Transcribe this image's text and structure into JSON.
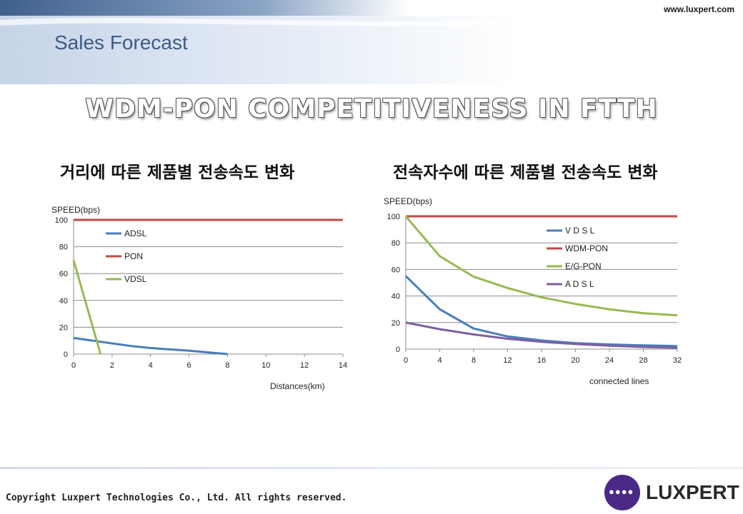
{
  "header": {
    "url": "www.luxpert.com",
    "section_title": "Sales Forecast"
  },
  "headline": "WDM-PON COMPETITIVENESS IN FTTH",
  "left_subtitle": "거리에 따른 제품별 전송속도 변화",
  "right_subtitle": "전속자수에 따른 제품별 전송속도 변화",
  "footer": {
    "copyright": "Copyright Luxpert Technologies Co., Ltd. All rights reserved.",
    "logo_text": "LUXPERT"
  },
  "colors": {
    "blue": "#4a7ebb",
    "red": "#be4b48",
    "green": "#98b954",
    "purple": "#7d60a0",
    "header_blue": "#3d5c86",
    "logo_purple": "#4b2a87"
  },
  "chart_data": [
    {
      "type": "line",
      "title": "",
      "xlabel": "Distances(km)",
      "ylabel": "SPEED(bps)",
      "xlim": [
        0,
        14
      ],
      "ylim": [
        0,
        100
      ],
      "x_ticks": [
        0,
        2,
        4,
        6,
        8,
        10,
        12,
        14
      ],
      "y_ticks": [
        0,
        20,
        40,
        60,
        80,
        100
      ],
      "grid": true,
      "legend_position": "top-center",
      "series": [
        {
          "name": "ADSL",
          "color": "#4a7ebb",
          "points": [
            [
              0,
              12
            ],
            [
              1,
              10
            ],
            [
              2,
              8
            ],
            [
              3,
              6
            ],
            [
              4,
              4.5
            ],
            [
              6,
              2.5
            ],
            [
              8,
              0
            ]
          ]
        },
        {
          "name": "PON",
          "color": "#be4b48",
          "points": [
            [
              0,
              100
            ],
            [
              14,
              100
            ]
          ]
        },
        {
          "name": "VDSL",
          "color": "#98b954",
          "points": [
            [
              0,
              70
            ],
            [
              1.4,
              0
            ]
          ]
        }
      ]
    },
    {
      "type": "line",
      "title": "",
      "xlabel": "connected lines",
      "ylabel": "SPEED(bps)",
      "xlim": [
        0,
        32
      ],
      "ylim": [
        0,
        100
      ],
      "x_ticks": [
        0,
        4,
        8,
        12,
        16,
        20,
        24,
        28,
        32
      ],
      "y_ticks": [
        0,
        20,
        40,
        60,
        80,
        100
      ],
      "grid": true,
      "legend_position": "top-center",
      "series": [
        {
          "name": "V D S L",
          "color": "#4a7ebb",
          "points": [
            [
              0,
              55
            ],
            [
              4,
              30
            ],
            [
              8,
              15.5
            ],
            [
              12,
              9.5
            ],
            [
              16,
              6.5
            ],
            [
              20,
              4.5
            ],
            [
              24,
              3.5
            ],
            [
              28,
              2.8
            ],
            [
              32,
              2.3
            ]
          ]
        },
        {
          "name": "WDM-PON",
          "color": "#be4b48",
          "points": [
            [
              0,
              100
            ],
            [
              32,
              100
            ]
          ]
        },
        {
          "name": "E/G-PON",
          "color": "#98b954",
          "points": [
            [
              0,
              100
            ],
            [
              4,
              70
            ],
            [
              8,
              54.5
            ],
            [
              12,
              46
            ],
            [
              16,
              39
            ],
            [
              20,
              34
            ],
            [
              24,
              30
            ],
            [
              28,
              27
            ],
            [
              32,
              25.5
            ]
          ]
        },
        {
          "name": "A D S L",
          "color": "#7d60a0",
          "points": [
            [
              0,
              20
            ],
            [
              4,
              15
            ],
            [
              8,
              11
            ],
            [
              12,
              7.8
            ],
            [
              16,
              5.5
            ],
            [
              20,
              3.8
            ],
            [
              24,
              2.5
            ],
            [
              28,
              1.6
            ],
            [
              32,
              1.0
            ]
          ]
        }
      ]
    }
  ]
}
